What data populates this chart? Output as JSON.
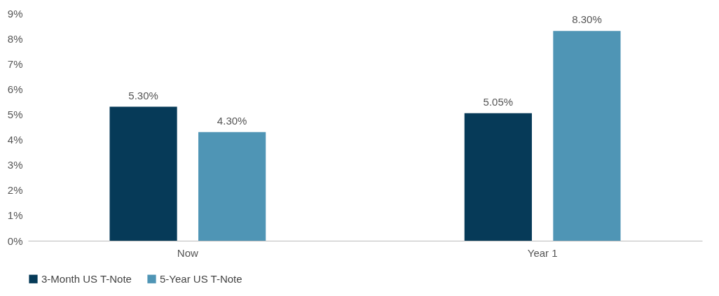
{
  "chart_data": {
    "type": "bar",
    "categories": [
      "Now",
      "Year 1"
    ],
    "series": [
      {
        "name": "3-Month US T-Note",
        "color": "#063a58",
        "values": [
          5.3,
          5.05
        ],
        "value_labels": [
          "5.30%",
          "5.05%"
        ]
      },
      {
        "name": "5-Year US T-Note",
        "color": "#4f95b5",
        "values": [
          4.3,
          8.3
        ],
        "value_labels": [
          "4.30%",
          "8.30%"
        ]
      }
    ],
    "ylim": [
      0,
      9
    ],
    "yticks": [
      {
        "value": 0,
        "label": "0%"
      },
      {
        "value": 1,
        "label": "1%"
      },
      {
        "value": 2,
        "label": "2%"
      },
      {
        "value": 3,
        "label": "3%"
      },
      {
        "value": 4,
        "label": "4%"
      },
      {
        "value": 5,
        "label": "5%"
      },
      {
        "value": 6,
        "label": "6%"
      },
      {
        "value": 7,
        "label": "7%"
      },
      {
        "value": 8,
        "label": "8%"
      },
      {
        "value": 9,
        "label": "9%"
      }
    ],
    "grid": false,
    "legend": "bottom"
  }
}
